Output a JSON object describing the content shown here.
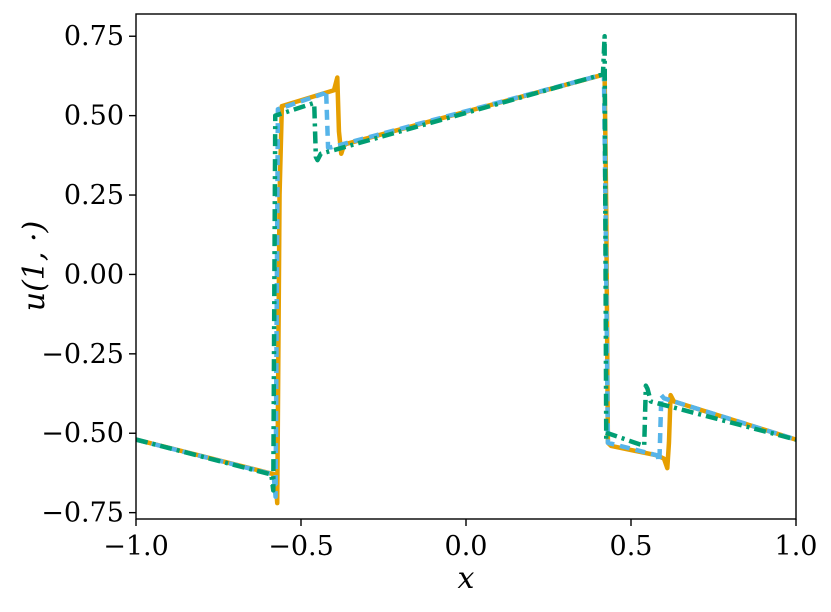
{
  "chart_data": {
    "type": "line",
    "title": "",
    "xlabel": "x",
    "ylabel": "u(1, ·)",
    "xlim": [
      -1.0,
      1.0
    ],
    "ylim": [
      -0.77,
      0.82
    ],
    "xticks": [
      -1.0,
      -0.5,
      0.0,
      0.5,
      1.0
    ],
    "xtick_labels": [
      "−1.0",
      "−0.5",
      "0.0",
      "0.5",
      "1.0"
    ],
    "yticks": [
      -0.75,
      -0.5,
      -0.25,
      0.0,
      0.25,
      0.5,
      0.75
    ],
    "ytick_labels": [
      "−0.75",
      "−0.50",
      "−0.25",
      "0.00",
      "0.25",
      "0.50",
      "0.75"
    ],
    "grid": false,
    "legend": "none",
    "series": [
      {
        "color": "#E69F00",
        "style": "solid",
        "x": [
          -1.0,
          -0.578,
          -0.572,
          -0.565,
          -0.558,
          -0.4,
          -0.39,
          -0.385,
          -0.378,
          -0.372,
          -0.366,
          0.42,
          0.425,
          0.43,
          0.44,
          0.58,
          0.6,
          0.61,
          0.615,
          0.62,
          0.63,
          1.0
        ],
        "y": [
          -0.52,
          -0.63,
          -0.72,
          0.25,
          0.53,
          0.58,
          0.62,
          0.45,
          0.38,
          0.4,
          0.41,
          0.63,
          0.2,
          -0.53,
          -0.54,
          -0.57,
          -0.58,
          -0.61,
          -0.53,
          -0.38,
          -0.4,
          -0.52
        ]
      },
      {
        "color": "#56B4E9",
        "style": "dashed",
        "x": [
          -1.0,
          -0.583,
          -0.577,
          -0.57,
          -0.43,
          -0.424,
          -0.418,
          -0.41,
          0.418,
          0.424,
          0.43,
          0.58,
          0.586,
          0.592,
          0.6,
          1.0
        ],
        "y": [
          -0.52,
          -0.63,
          -0.7,
          0.52,
          0.57,
          0.58,
          0.4,
          0.4,
          0.63,
          0.1,
          -0.53,
          -0.57,
          -0.59,
          -0.38,
          -0.39,
          -0.52
        ]
      },
      {
        "color": "#009E73",
        "style": "dashdot",
        "x": [
          -1.0,
          -0.59,
          -0.584,
          -0.578,
          -0.46,
          -0.455,
          -0.45,
          -0.44,
          0.415,
          0.42,
          0.425,
          0.43,
          0.54,
          0.545,
          0.55,
          0.56,
          1.0
        ],
        "y": [
          -0.52,
          -0.63,
          -0.68,
          0.5,
          0.54,
          0.37,
          0.36,
          0.38,
          0.63,
          0.75,
          -0.52,
          -0.5,
          -0.54,
          -0.35,
          -0.36,
          -0.4,
          -0.52
        ]
      }
    ]
  }
}
